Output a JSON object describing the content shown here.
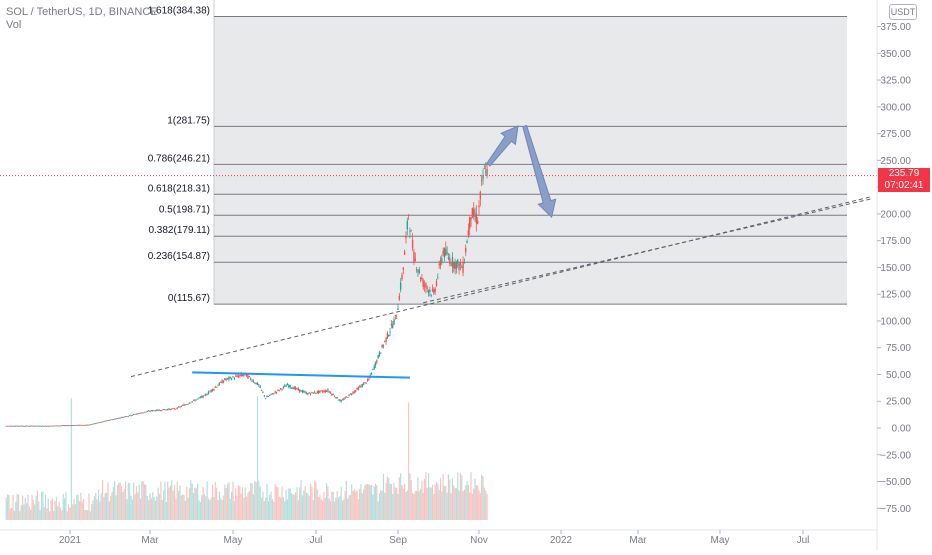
{
  "header": {
    "symbol_line": "SOL / TetherUS, 1D, BINANCE",
    "volume_label": "Vol"
  },
  "price_scale": {
    "currency_button": "USDT",
    "tick_labels": [
      "375.00",
      "350.00",
      "325.00",
      "300.00",
      "275.00",
      "250.00",
      "225.00",
      "200.00",
      "175.00",
      "150.00",
      "125.00",
      "100.00",
      "75.00",
      "50.00",
      "25.00",
      "0.00",
      "−25.00",
      "−50.00",
      "−75.00"
    ],
    "last_price": "235.79",
    "countdown": "07:02:41"
  },
  "time_axis": {
    "labels": [
      "2021",
      "Mar",
      "May",
      "Jul",
      "Sep",
      "Nov",
      "2022",
      "Mar",
      "May",
      "Jul"
    ]
  },
  "colors": {
    "up": "#26a69a",
    "down": "#ef5350",
    "fib_fill": "#e4e5e8",
    "fib_line": "#787b86",
    "trendline": "#2196f3",
    "arrow": "#8a9ec7",
    "last_price": "#f23645"
  },
  "chart_data": {
    "type": "candlestick",
    "symbol": "SOL / TetherUS",
    "interval": "1D",
    "exchange": "BINANCE",
    "y_range": [
      -85,
      395
    ],
    "y_ticks": [
      375,
      350,
      325,
      300,
      275,
      250,
      225,
      200,
      175,
      150,
      125,
      100,
      75,
      50,
      25,
      0,
      -25,
      -50,
      -75
    ],
    "x_ticks": [
      "2021",
      "Mar",
      "May",
      "Jul",
      "Sep",
      "Nov",
      "2022",
      "Mar",
      "May",
      "Jul"
    ],
    "last_price": 235.79,
    "fibonacci_levels": [
      {
        "ratio": "1.618",
        "value": 384.38,
        "label": "1.618(384.38)"
      },
      {
        "ratio": "1",
        "value": 281.75,
        "label": "1(281.75)"
      },
      {
        "ratio": "0.786",
        "value": 246.21,
        "label": "0.786(246.21)"
      },
      {
        "ratio": "0.618",
        "value": 218.31,
        "label": "0.618(218.31)"
      },
      {
        "ratio": "0.5",
        "value": 198.71,
        "label": "0.5(198.71)"
      },
      {
        "ratio": "0.382",
        "value": 179.11,
        "label": "0.382(179.11)"
      },
      {
        "ratio": "0.236",
        "value": 154.87,
        "label": "0.236(154.87)"
      },
      {
        "ratio": "0",
        "value": 115.67,
        "label": "0(115.67)"
      }
    ],
    "price_path": [
      {
        "date": "2020-11-15",
        "close": 2
      },
      {
        "date": "2020-12-15",
        "close": 2
      },
      {
        "date": "2021-01-15",
        "close": 3
      },
      {
        "date": "2021-02-01",
        "close": 8
      },
      {
        "date": "2021-02-15",
        "close": 12
      },
      {
        "date": "2021-03-01",
        "close": 16
      },
      {
        "date": "2021-03-20",
        "close": 18
      },
      {
        "date": "2021-04-10",
        "close": 30
      },
      {
        "date": "2021-04-25",
        "close": 45
      },
      {
        "date": "2021-05-10",
        "close": 50
      },
      {
        "date": "2021-05-20",
        "close": 40
      },
      {
        "date": "2021-05-25",
        "close": 28
      },
      {
        "date": "2021-06-10",
        "close": 40
      },
      {
        "date": "2021-06-25",
        "close": 32
      },
      {
        "date": "2021-07-10",
        "close": 35
      },
      {
        "date": "2021-07-20",
        "close": 25
      },
      {
        "date": "2021-08-01",
        "close": 36
      },
      {
        "date": "2021-08-10",
        "close": 45
      },
      {
        "date": "2021-08-20",
        "close": 75
      },
      {
        "date": "2021-08-31",
        "close": 105
      },
      {
        "date": "2021-09-05",
        "close": 150
      },
      {
        "date": "2021-09-09",
        "close": 200
      },
      {
        "date": "2021-09-13",
        "close": 160
      },
      {
        "date": "2021-09-20",
        "close": 135
      },
      {
        "date": "2021-09-28",
        "close": 125
      },
      {
        "date": "2021-10-05",
        "close": 165
      },
      {
        "date": "2021-10-12",
        "close": 155
      },
      {
        "date": "2021-10-20",
        "close": 150
      },
      {
        "date": "2021-10-26",
        "close": 200
      },
      {
        "date": "2021-10-31",
        "close": 195
      },
      {
        "date": "2021-11-03",
        "close": 225
      },
      {
        "date": "2021-11-06",
        "close": 245
      },
      {
        "date": "2021-11-07",
        "close": 235.79
      }
    ],
    "volume_spikes": [
      {
        "date": "2021-01-02",
        "level": "high"
      },
      {
        "date": "2021-05-19",
        "level": "high"
      },
      {
        "date": "2021-09-09",
        "level": "high"
      }
    ],
    "annotations": {
      "horizontal_trendline": {
        "from": {
          "date": "2021-04-01",
          "price": 52
        },
        "to": {
          "date": "2021-09-10",
          "price": 47
        }
      },
      "dashed_trendlines": [
        {
          "from": {
            "date": "2021-02-15",
            "price": 48
          },
          "to": {
            "date": "2022-08-20",
            "price": 216
          }
        },
        {
          "from": {
            "date": "2021-09-20",
            "price": 117
          },
          "to": {
            "date": "2022-08-20",
            "price": 214
          }
        }
      ],
      "arrows": [
        {
          "direction": "up",
          "from": {
            "date": "2021-11-08",
            "price": 246
          },
          "to": {
            "date": "2021-11-30",
            "price": 282
          }
        },
        {
          "direction": "down",
          "from": {
            "date": "2021-12-05",
            "price": 282
          },
          "to": {
            "date": "2021-12-25",
            "price": 197
          }
        }
      ]
    }
  }
}
